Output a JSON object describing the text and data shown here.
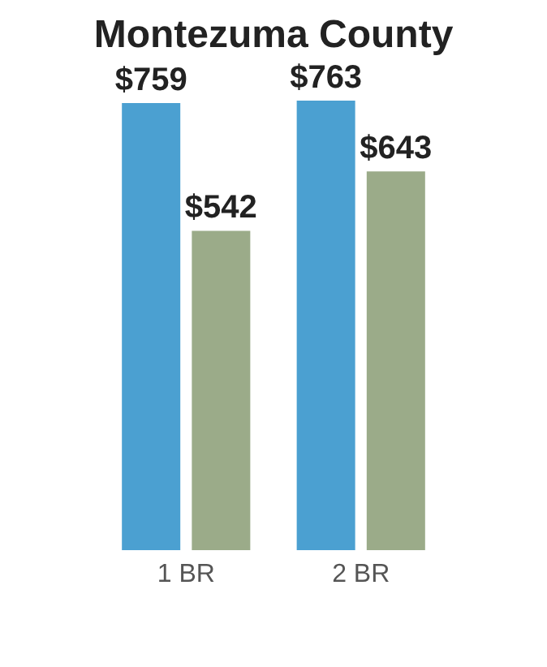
{
  "chart_data": {
    "type": "bar",
    "title": "Montezuma County",
    "categories": [
      "1 BR",
      "2 BR"
    ],
    "series": [
      {
        "color": "#4ba0d1",
        "values": [
          759,
          763
        ],
        "value_labels": [
          "$759",
          "$763"
        ]
      },
      {
        "color": "#9bab89",
        "values": [
          542,
          643
        ],
        "value_labels": [
          "$542",
          "$643"
        ]
      }
    ],
    "grid": false,
    "legend": false
  }
}
